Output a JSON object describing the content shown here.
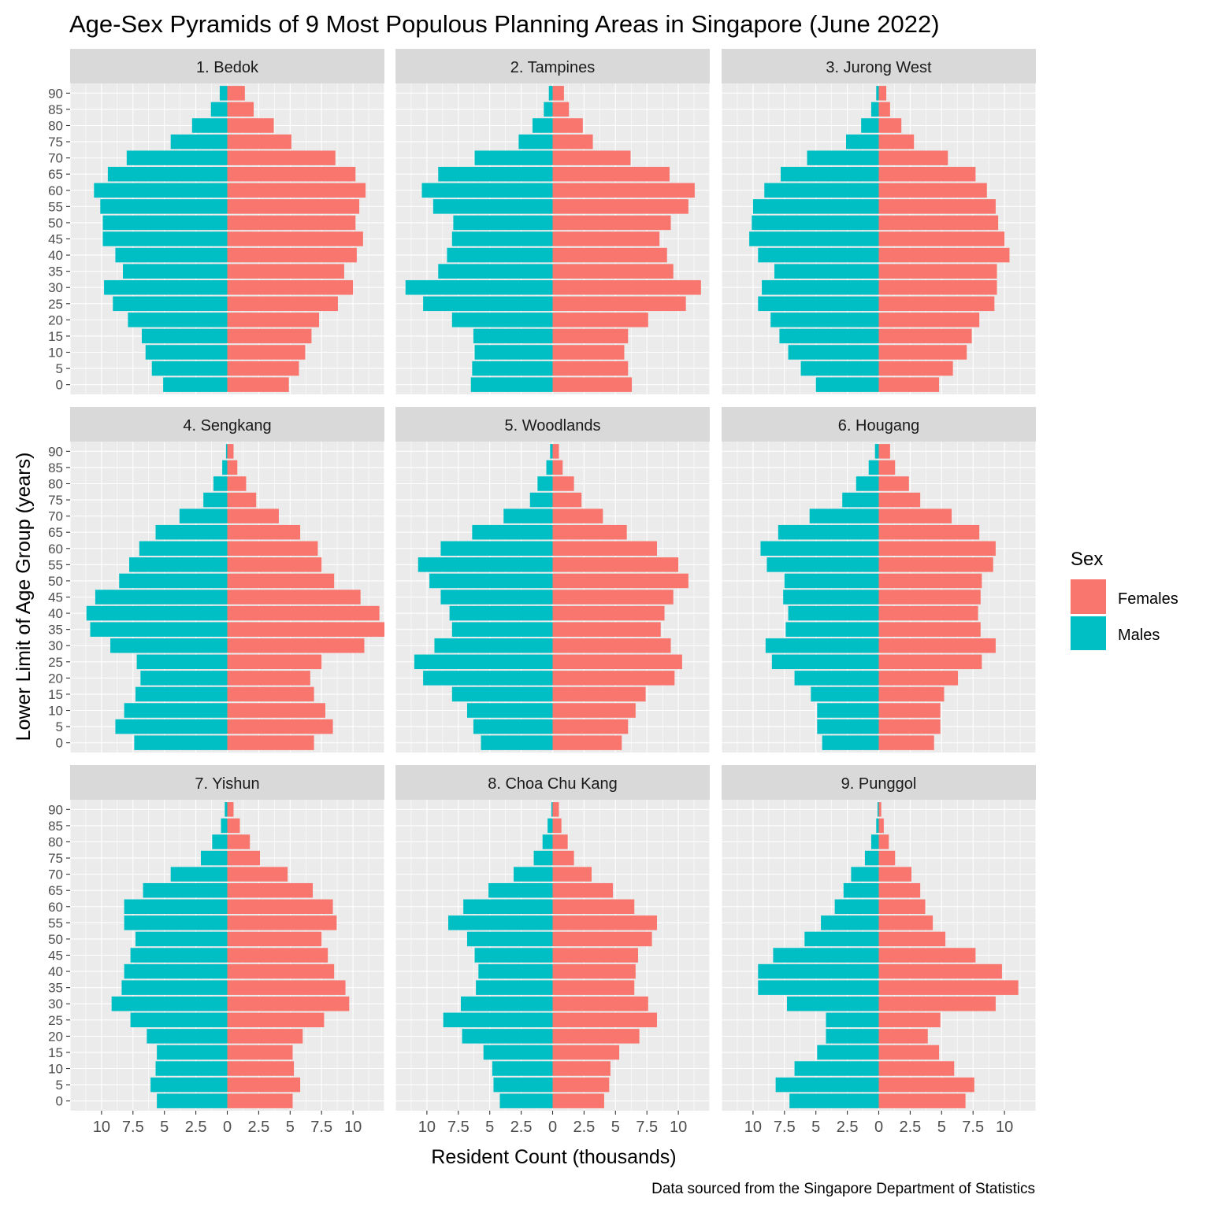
{
  "title": "Age-Sex Pyramids of 9 Most Populous Planning Areas in Singapore (June 2022)",
  "caption": "Data sourced from the Singapore Department of Statistics",
  "chart_data": {
    "type": "bar",
    "orientation": "horizontal-pyramid",
    "xlabel": "Resident Count (thousands)",
    "ylabel": "Lower Limit of Age Group (years)",
    "x_ticks": [
      "10",
      "7.5",
      "5",
      "2.5",
      "0",
      "2.5",
      "5",
      "7.5",
      "10"
    ],
    "x_tick_values": [
      -10,
      -7.5,
      -5,
      -2.5,
      0,
      2.5,
      5,
      7.5,
      10
    ],
    "xlim": [
      -12.5,
      12.5
    ],
    "y_ticks": [
      "0",
      "5",
      "10",
      "15",
      "20",
      "25",
      "30",
      "35",
      "40",
      "45",
      "50",
      "55",
      "60",
      "65",
      "70",
      "75",
      "80",
      "85",
      "90"
    ],
    "legend": {
      "title": "Sex",
      "position": "right",
      "items": [
        {
          "label": "Females",
          "color": "#F8766D"
        },
        {
          "label": "Males",
          "color": "#00BFC4"
        }
      ]
    },
    "facets": [
      {
        "name": "1. Bedok",
        "males": [
          5.1,
          6.0,
          6.5,
          6.8,
          7.9,
          9.1,
          9.8,
          8.3,
          8.9,
          9.9,
          9.9,
          10.1,
          10.6,
          9.5,
          8.0,
          4.5,
          2.8,
          1.3,
          0.6
        ],
        "females": [
          4.9,
          5.7,
          6.2,
          6.7,
          7.3,
          8.8,
          10.0,
          9.3,
          10.3,
          10.8,
          10.2,
          10.5,
          11.0,
          10.2,
          8.6,
          5.1,
          3.7,
          2.1,
          1.4
        ]
      },
      {
        "name": "2. Tampines",
        "males": [
          6.5,
          6.4,
          6.2,
          6.3,
          8.0,
          10.3,
          11.7,
          9.1,
          8.4,
          8.0,
          7.9,
          9.5,
          10.4,
          9.1,
          6.2,
          2.7,
          1.6,
          0.7,
          0.3
        ],
        "females": [
          6.3,
          6.0,
          5.7,
          6.0,
          7.6,
          10.6,
          11.8,
          9.6,
          9.1,
          8.5,
          9.4,
          10.8,
          11.3,
          9.3,
          6.2,
          3.2,
          2.4,
          1.3,
          0.9
        ]
      },
      {
        "name": "3. Jurong West",
        "males": [
          5.0,
          6.2,
          7.2,
          7.9,
          8.6,
          9.6,
          9.3,
          8.3,
          9.6,
          10.3,
          10.1,
          10.0,
          9.1,
          7.8,
          5.7,
          2.6,
          1.4,
          0.6,
          0.2
        ],
        "females": [
          4.8,
          5.9,
          7.0,
          7.4,
          8.0,
          9.2,
          9.4,
          9.4,
          10.4,
          10.0,
          9.5,
          9.3,
          8.6,
          7.7,
          5.5,
          2.8,
          1.8,
          0.9,
          0.6
        ]
      },
      {
        "name": "4. Sengkang",
        "males": [
          7.4,
          8.9,
          8.2,
          7.3,
          6.9,
          7.2,
          9.3,
          10.9,
          11.2,
          10.5,
          8.6,
          7.8,
          7.0,
          5.7,
          3.8,
          1.9,
          1.1,
          0.4,
          0.1
        ],
        "females": [
          6.9,
          8.4,
          7.8,
          6.9,
          6.6,
          7.5,
          10.9,
          12.5,
          12.1,
          10.6,
          8.5,
          7.5,
          7.2,
          5.8,
          4.1,
          2.3,
          1.5,
          0.8,
          0.5
        ]
      },
      {
        "name": "5. Woodlands",
        "males": [
          5.7,
          6.3,
          6.8,
          8.0,
          10.3,
          11.0,
          9.4,
          8.0,
          8.2,
          8.9,
          9.8,
          10.7,
          8.9,
          6.4,
          3.9,
          1.8,
          1.2,
          0.5,
          0.2
        ],
        "females": [
          5.5,
          6.0,
          6.6,
          7.4,
          9.7,
          10.3,
          9.4,
          8.6,
          8.9,
          9.6,
          10.8,
          10.0,
          8.3,
          5.9,
          4.0,
          2.3,
          1.7,
          0.8,
          0.5
        ]
      },
      {
        "name": "6. Hougang",
        "males": [
          4.5,
          4.9,
          4.9,
          5.4,
          6.7,
          8.5,
          9.0,
          7.4,
          7.2,
          7.6,
          7.5,
          8.9,
          9.4,
          8.0,
          5.5,
          2.9,
          1.8,
          0.8,
          0.3
        ],
        "females": [
          4.4,
          4.9,
          4.9,
          5.2,
          6.3,
          8.2,
          9.3,
          8.1,
          7.9,
          8.1,
          8.2,
          9.1,
          9.3,
          8.0,
          5.8,
          3.3,
          2.4,
          1.3,
          0.9
        ]
      },
      {
        "name": "7. Yishun",
        "males": [
          5.6,
          6.1,
          5.7,
          5.6,
          6.4,
          7.7,
          9.2,
          8.4,
          8.2,
          7.7,
          7.3,
          8.2,
          8.2,
          6.7,
          4.5,
          2.1,
          1.2,
          0.5,
          0.2
        ],
        "females": [
          5.2,
          5.8,
          5.3,
          5.2,
          6.0,
          7.7,
          9.7,
          9.4,
          8.5,
          8.0,
          7.5,
          8.7,
          8.4,
          6.8,
          4.8,
          2.6,
          1.8,
          1.0,
          0.5
        ]
      },
      {
        "name": "8. Choa Chu Kang",
        "males": [
          4.2,
          4.7,
          4.8,
          5.5,
          7.2,
          8.7,
          7.3,
          6.1,
          5.9,
          6.2,
          6.8,
          8.3,
          7.1,
          5.1,
          3.1,
          1.5,
          0.8,
          0.4,
          0.1
        ],
        "females": [
          4.1,
          4.5,
          4.6,
          5.3,
          6.9,
          8.3,
          7.6,
          6.5,
          6.6,
          6.8,
          7.9,
          8.3,
          6.5,
          4.8,
          3.1,
          1.7,
          1.2,
          0.7,
          0.5
        ]
      },
      {
        "name": "9. Punggol",
        "males": [
          7.1,
          8.2,
          6.7,
          4.9,
          4.2,
          4.2,
          7.3,
          9.6,
          9.6,
          8.4,
          5.9,
          4.6,
          3.5,
          2.8,
          2.2,
          1.1,
          0.6,
          0.2,
          0.1
        ],
        "females": [
          6.9,
          7.6,
          6.0,
          4.8,
          3.9,
          4.9,
          9.3,
          11.1,
          9.8,
          7.7,
          5.3,
          4.3,
          3.7,
          3.3,
          2.6,
          1.3,
          0.8,
          0.4,
          0.2
        ]
      }
    ]
  }
}
